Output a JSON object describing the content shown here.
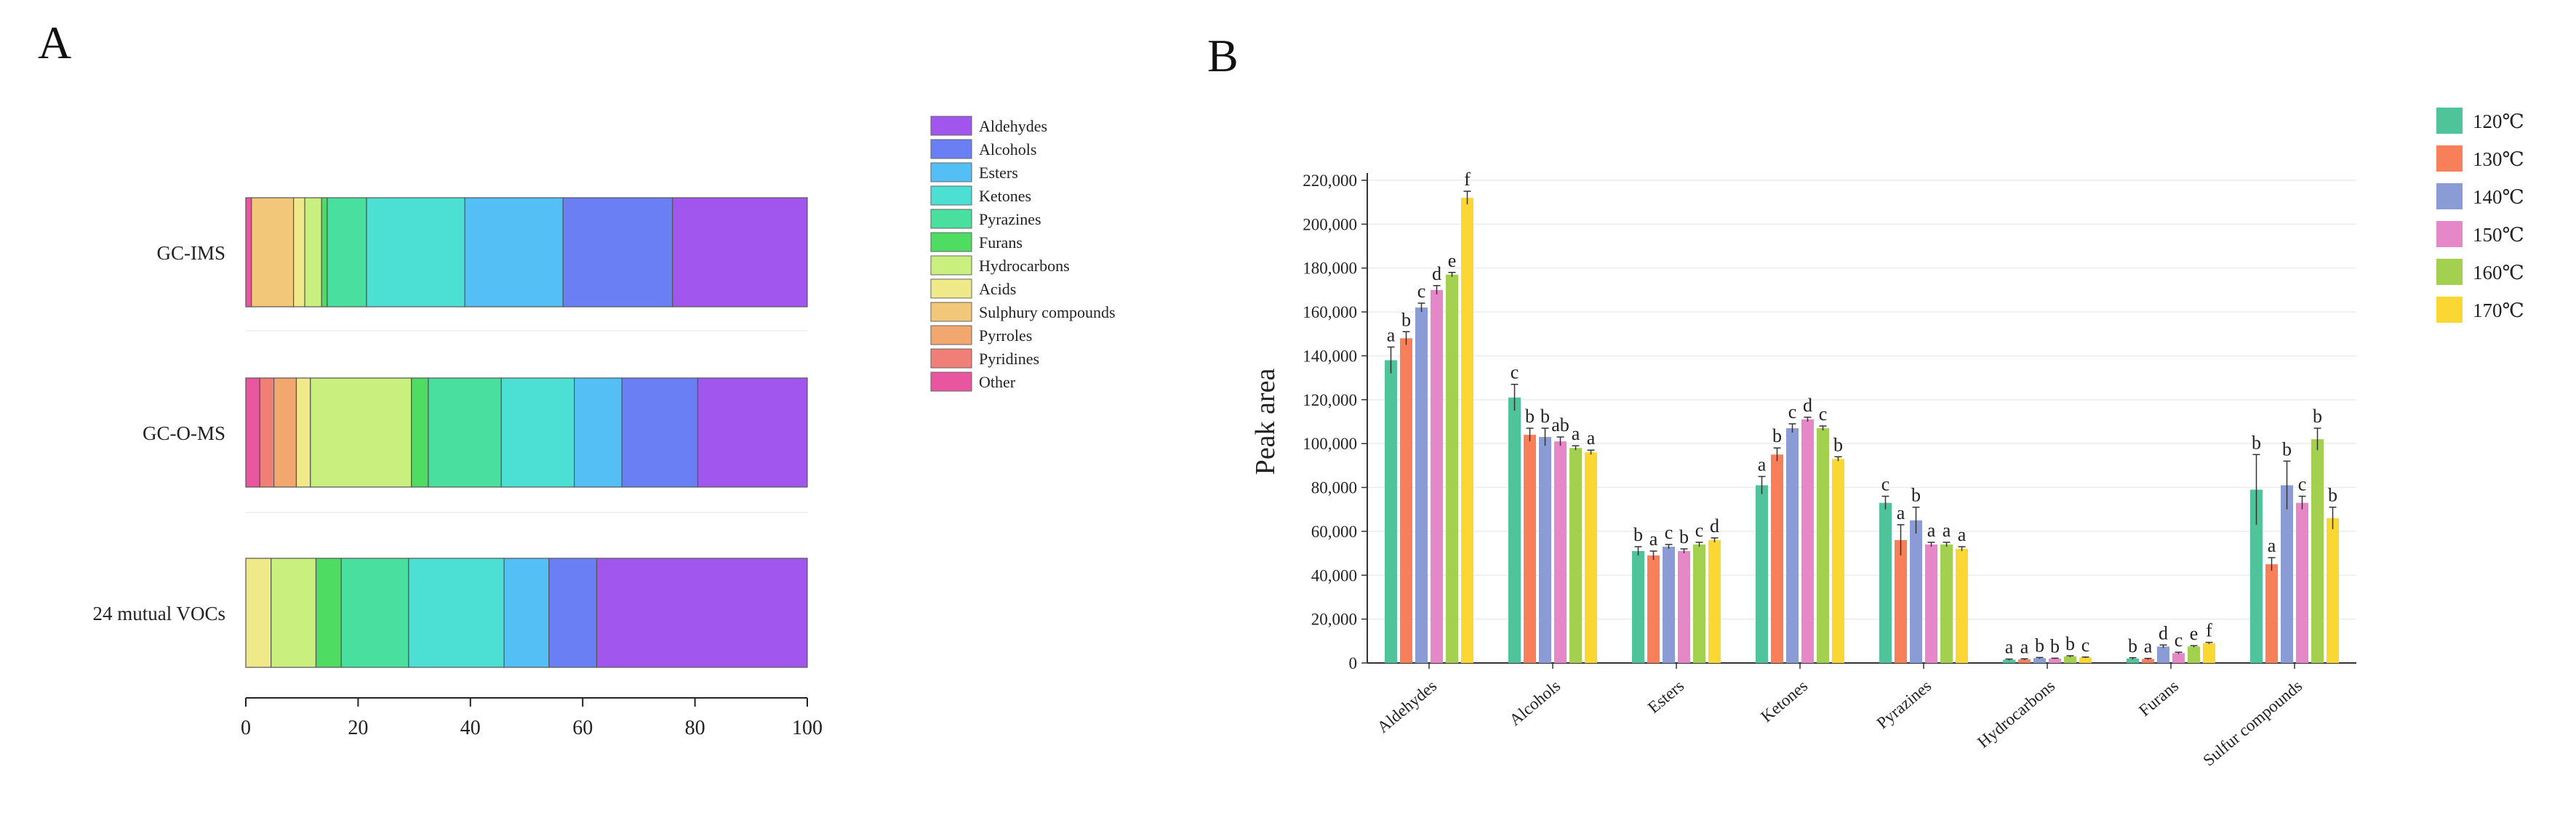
{
  "panels": {
    "a": "A",
    "b": "B"
  },
  "chart_data": [
    {
      "type": "bar",
      "orientation": "horizontal",
      "stacked": true,
      "panel": "A",
      "categories": [
        "GC-IMS",
        "GC-O-MS",
        "24 mutual VOCs"
      ],
      "xlim": [
        0,
        100
      ],
      "xticks": [
        0,
        20,
        40,
        60,
        80,
        100
      ],
      "legend_position": "right",
      "series": [
        {
          "name": "Other",
          "color": "#e9559e",
          "values": [
            1,
            2.5,
            0
          ]
        },
        {
          "name": "Pyridines",
          "color": "#f07f78",
          "values": [
            0,
            2.5,
            0
          ]
        },
        {
          "name": "Pyrroles",
          "color": "#f1a76e",
          "values": [
            0,
            4,
            0
          ]
        },
        {
          "name": "Sulphury compounds",
          "color": "#f2c779",
          "values": [
            7.5,
            0,
            0
          ]
        },
        {
          "name": "Acids",
          "color": "#f0e98a",
          "values": [
            2,
            2.5,
            4.5
          ]
        },
        {
          "name": "Hydrocarbons",
          "color": "#c9f07e",
          "values": [
            3,
            18,
            8
          ]
        },
        {
          "name": "Furans",
          "color": "#4edc62",
          "values": [
            1,
            3,
            4.5
          ]
        },
        {
          "name": "Pyrazines",
          "color": "#49df9e",
          "values": [
            7,
            13,
            12
          ]
        },
        {
          "name": "Ketones",
          "color": "#4cdfd3",
          "values": [
            17.5,
            13,
            17
          ]
        },
        {
          "name": "Esters",
          "color": "#54bff5",
          "values": [
            17.5,
            8.5,
            8
          ]
        },
        {
          "name": "Alcohols",
          "color": "#6b7ff5",
          "values": [
            19.5,
            13.5,
            8.5
          ]
        },
        {
          "name": "Aldehydes",
          "color": "#a157ee",
          "values": [
            24,
            19.5,
            37.5
          ]
        }
      ],
      "legend_order": [
        "Aldehydes",
        "Alcohols",
        "Esters",
        "Ketones",
        "Pyrazines",
        "Furans",
        "Hydrocarbons",
        "Acids",
        "Sulphury compounds",
        "Pyrroles",
        "Pyridines",
        "Other"
      ]
    },
    {
      "type": "bar",
      "panel": "B",
      "ylabel": "Peak area",
      "ylim": [
        0,
        220000
      ],
      "yticks": [
        0,
        20000,
        40000,
        60000,
        80000,
        100000,
        120000,
        140000,
        160000,
        180000,
        200000,
        220000
      ],
      "ytick_labels": [
        "0",
        "20,000",
        "40,000",
        "60,000",
        "80,000",
        "100,000",
        "120,000",
        "140,000",
        "160,000",
        "180,000",
        "200,000",
        "220,000"
      ],
      "categories": [
        "Aldehydes",
        "Alcohols",
        "Esters",
        "Ketones",
        "Pyrazines",
        "Hydrocarbons",
        "Furans",
        "Sulfur compounds"
      ],
      "legend_position": "top-right",
      "series": [
        {
          "name": "120℃",
          "color": "#4fc39a",
          "values": [
            138000,
            121000,
            51000,
            81000,
            73000,
            1500,
            2000,
            79000
          ],
          "errors": [
            6000,
            6000,
            2000,
            4000,
            3000,
            300,
            400,
            16000
          ],
          "letters": [
            "a",
            "c",
            "b",
            "a",
            "c",
            "a",
            "b",
            "b"
          ]
        },
        {
          "name": "130℃",
          "color": "#f77f59",
          "values": [
            148000,
            104000,
            49000,
            95000,
            56000,
            1600,
            1800,
            45000
          ],
          "errors": [
            3000,
            3000,
            2000,
            3000,
            7000,
            300,
            300,
            3000
          ],
          "letters": [
            "b",
            "b",
            "a",
            "b",
            "a",
            "a",
            "a",
            "a"
          ]
        },
        {
          "name": "140℃",
          "color": "#8b9bd6",
          "values": [
            162000,
            103000,
            53000,
            107000,
            65000,
            2200,
            7500,
            81000
          ],
          "errors": [
            2000,
            4000,
            1000,
            2000,
            6000,
            300,
            700,
            11000
          ],
          "letters": [
            "c",
            "b",
            "c",
            "c",
            "b",
            "b",
            "d",
            "b"
          ]
        },
        {
          "name": "150℃",
          "color": "#e688c7",
          "values": [
            170000,
            101000,
            51000,
            111000,
            54000,
            2000,
            4500,
            73000
          ],
          "errors": [
            2000,
            2000,
            1000,
            1000,
            1000,
            200,
            400,
            3000
          ],
          "letters": [
            "d",
            "ab",
            "b",
            "d",
            "a",
            "b",
            "c",
            "c"
          ]
        },
        {
          "name": "160℃",
          "color": "#a3d14f",
          "values": [
            177000,
            98000,
            54000,
            107000,
            54000,
            3000,
            7500,
            102000
          ],
          "errors": [
            1000,
            1000,
            1000,
            1000,
            1000,
            300,
            400,
            5000
          ],
          "letters": [
            "e",
            "a",
            "c",
            "c",
            "a",
            "b",
            "e",
            "b"
          ]
        },
        {
          "name": "170℃",
          "color": "#fbd733",
          "values": [
            212000,
            96000,
            56000,
            93000,
            52000,
            2500,
            9000,
            66000
          ],
          "errors": [
            3000,
            1000,
            1000,
            1000,
            1000,
            200,
            400,
            5000
          ],
          "letters": [
            "f",
            "a",
            "d",
            "b",
            "a",
            "c",
            "f",
            "b"
          ]
        }
      ]
    }
  ]
}
